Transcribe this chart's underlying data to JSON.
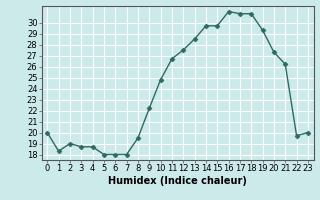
{
  "x": [
    0,
    1,
    2,
    3,
    4,
    5,
    6,
    7,
    8,
    9,
    10,
    11,
    12,
    13,
    14,
    15,
    16,
    17,
    18,
    19,
    20,
    21,
    22,
    23
  ],
  "y": [
    20,
    18.3,
    19,
    18.7,
    18.7,
    18,
    18,
    18,
    19.5,
    22.2,
    24.8,
    26.7,
    27.5,
    28.5,
    29.7,
    29.7,
    31,
    30.8,
    30.8,
    29.3,
    27.3,
    26.2,
    19.7,
    20
  ],
  "xlabel": "Humidex (Indice chaleur)",
  "xlim": [
    -0.5,
    23.5
  ],
  "ylim": [
    17.5,
    31.5
  ],
  "yticks": [
    18,
    19,
    20,
    21,
    22,
    23,
    24,
    25,
    26,
    27,
    28,
    29,
    30
  ],
  "xticks": [
    0,
    1,
    2,
    3,
    4,
    5,
    6,
    7,
    8,
    9,
    10,
    11,
    12,
    13,
    14,
    15,
    16,
    17,
    18,
    19,
    20,
    21,
    22,
    23
  ],
  "line_color": "#2e6b5e",
  "marker": "D",
  "marker_size": 2.5,
  "bg_color": "#cceaea",
  "grid_color": "#ffffff",
  "tick_fontsize": 6,
  "label_fontsize": 7
}
